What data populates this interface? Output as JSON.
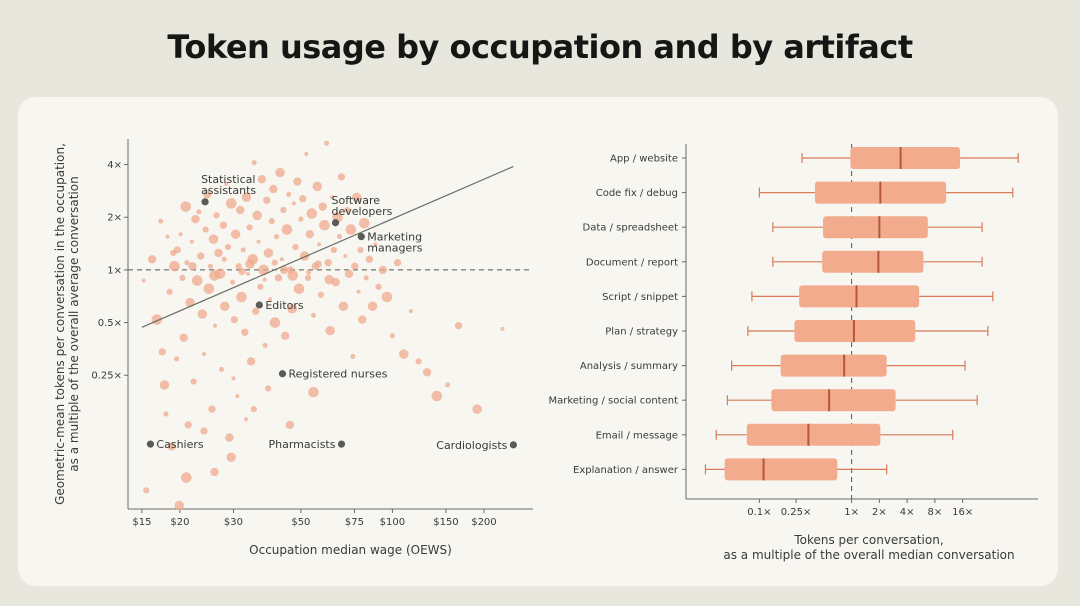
{
  "page": {
    "title": "Token usage by occupation and by artifact"
  },
  "chart_data": [
    {
      "type": "scatter",
      "title": "",
      "xlabel": "Occupation median wage (OEWS)",
      "ylabel": "Geometric-mean tokens per conversation in the occupation, as a multiple of the overall average conversation",
      "ylabel_lines": [
        "Geometric-mean tokens per conversation in the occupation,",
        "as a multiple of the overall average conversation"
      ],
      "x_scale": "log",
      "y_scale": "log",
      "x_ticks": [
        {
          "value": 15,
          "label": "$15"
        },
        {
          "value": 20,
          "label": "$20"
        },
        {
          "value": 30,
          "label": "$30"
        },
        {
          "value": 50,
          "label": "$50"
        },
        {
          "value": 75,
          "label": "$75"
        },
        {
          "value": 100,
          "label": "$100"
        },
        {
          "value": 150,
          "label": "$150"
        },
        {
          "value": 200,
          "label": "$200"
        }
      ],
      "y_ticks": [
        {
          "value": 0.25,
          "label": "0.25×"
        },
        {
          "value": 0.5,
          "label": "0.5×"
        },
        {
          "value": 1,
          "label": "1×"
        },
        {
          "value": 2,
          "label": "2×"
        },
        {
          "value": 4,
          "label": "4×"
        }
      ],
      "xlim": [
        13.5,
        290
      ],
      "ylim": [
        0.043,
        5.6
      ],
      "reference_line_y": 1,
      "trend_line": [
        {
          "x": 15,
          "y": 0.47
        },
        {
          "x": 250,
          "y": 3.9
        }
      ],
      "highlighted": [
        {
          "label": "Statistical assistants",
          "lines": [
            "Statistical",
            "assistants"
          ],
          "x": 24.2,
          "y": 2.45,
          "side": "above"
        },
        {
          "label": "Software developers",
          "lines": [
            "Software",
            "developers"
          ],
          "x": 65,
          "y": 1.86,
          "side": "above"
        },
        {
          "label": "Marketing managers",
          "lines": [
            "Marketing",
            "managers"
          ],
          "x": 79,
          "y": 1.55,
          "side": "right"
        },
        {
          "label": "Editors",
          "lines": [
            "Editors"
          ],
          "x": 36.5,
          "y": 0.63,
          "side": "right"
        },
        {
          "label": "Registered nurses",
          "lines": [
            "Registered nurses"
          ],
          "x": 43.5,
          "y": 0.255,
          "side": "right"
        },
        {
          "label": "Cashiers",
          "lines": [
            "Cashiers"
          ],
          "x": 16,
          "y": 0.101,
          "side": "right"
        },
        {
          "label": "Pharmacists",
          "lines": [
            "Pharmacists"
          ],
          "x": 68,
          "y": 0.101,
          "side": "left"
        },
        {
          "label": "Cardiologists",
          "lines": [
            "Cardiologists"
          ],
          "x": 250,
          "y": 0.1,
          "side": "left"
        }
      ],
      "points": [
        {
          "x": 15.2,
          "y": 0.87
        },
        {
          "x": 15.5,
          "y": 0.055
        },
        {
          "x": 16.2,
          "y": 1.15
        },
        {
          "x": 16.8,
          "y": 0.52
        },
        {
          "x": 17.3,
          "y": 1.9
        },
        {
          "x": 17.5,
          "y": 0.34
        },
        {
          "x": 17.8,
          "y": 0.22
        },
        {
          "x": 18.2,
          "y": 1.55
        },
        {
          "x": 18.5,
          "y": 0.75
        },
        {
          "x": 18.8,
          "y": 0.098
        },
        {
          "x": 19.2,
          "y": 1.05
        },
        {
          "x": 19.5,
          "y": 0.31
        },
        {
          "x": 19.6,
          "y": 1.3
        },
        {
          "x": 19.9,
          "y": 0.045
        },
        {
          "x": 20.1,
          "y": 1.6
        },
        {
          "x": 20.4,
          "y": 0.9
        },
        {
          "x": 20.6,
          "y": 0.41
        },
        {
          "x": 20.9,
          "y": 2.3
        },
        {
          "x": 21.1,
          "y": 1.1
        },
        {
          "x": 21.3,
          "y": 0.13
        },
        {
          "x": 21.6,
          "y": 0.65
        },
        {
          "x": 21.9,
          "y": 1.45
        },
        {
          "x": 22.2,
          "y": 0.23
        },
        {
          "x": 22.5,
          "y": 1.95
        },
        {
          "x": 22.8,
          "y": 0.87
        },
        {
          "x": 23.1,
          "y": 2.15
        },
        {
          "x": 23.4,
          "y": 1.2
        },
        {
          "x": 23.7,
          "y": 0.56
        },
        {
          "x": 24.0,
          "y": 0.33
        },
        {
          "x": 24.3,
          "y": 1.7
        },
        {
          "x": 24.6,
          "y": 2.7
        },
        {
          "x": 24.9,
          "y": 0.78
        },
        {
          "x": 25.2,
          "y": 1.05
        },
        {
          "x": 25.5,
          "y": 0.16
        },
        {
          "x": 25.8,
          "y": 1.5
        },
        {
          "x": 26.1,
          "y": 0.48
        },
        {
          "x": 26.4,
          "y": 2.05
        },
        {
          "x": 26.8,
          "y": 1.25
        },
        {
          "x": 27.1,
          "y": 0.95
        },
        {
          "x": 27.4,
          "y": 0.27
        },
        {
          "x": 27.8,
          "y": 1.8
        },
        {
          "x": 28.1,
          "y": 0.62
        },
        {
          "x": 28.4,
          "y": 3.1
        },
        {
          "x": 28.8,
          "y": 1.35
        },
        {
          "x": 29.1,
          "y": 0.11
        },
        {
          "x": 29.5,
          "y": 2.4
        },
        {
          "x": 29.8,
          "y": 0.85
        },
        {
          "x": 30.2,
          "y": 0.52
        },
        {
          "x": 30.5,
          "y": 1.6
        },
        {
          "x": 30.9,
          "y": 0.19
        },
        {
          "x": 31.2,
          "y": 1.05
        },
        {
          "x": 31.6,
          "y": 2.2
        },
        {
          "x": 31.9,
          "y": 0.7
        },
        {
          "x": 32.3,
          "y": 1.3
        },
        {
          "x": 32.7,
          "y": 0.44
        },
        {
          "x": 33.1,
          "y": 2.6
        },
        {
          "x": 33.5,
          "y": 0.95
        },
        {
          "x": 33.9,
          "y": 1.75
        },
        {
          "x": 34.3,
          "y": 0.3
        },
        {
          "x": 34.7,
          "y": 1.15
        },
        {
          "x": 35.1,
          "y": 4.1
        },
        {
          "x": 35.5,
          "y": 0.58
        },
        {
          "x": 35.9,
          "y": 2.05
        },
        {
          "x": 36.3,
          "y": 1.45
        },
        {
          "x": 36.8,
          "y": 0.8
        },
        {
          "x": 37.2,
          "y": 3.3
        },
        {
          "x": 37.7,
          "y": 1.0
        },
        {
          "x": 38.1,
          "y": 0.37
        },
        {
          "x": 38.6,
          "y": 2.5
        },
        {
          "x": 39.1,
          "y": 1.25
        },
        {
          "x": 39.6,
          "y": 0.68
        },
        {
          "x": 40.1,
          "y": 1.9
        },
        {
          "x": 40.6,
          "y": 2.9
        },
        {
          "x": 41.1,
          "y": 0.5
        },
        {
          "x": 41.6,
          "y": 1.55
        },
        {
          "x": 42.2,
          "y": 0.9
        },
        {
          "x": 42.7,
          "y": 3.6
        },
        {
          "x": 43.3,
          "y": 1.15
        },
        {
          "x": 43.8,
          "y": 2.2
        },
        {
          "x": 44.4,
          "y": 0.42
        },
        {
          "x": 45.0,
          "y": 1.7
        },
        {
          "x": 45.6,
          "y": 2.7
        },
        {
          "x": 46.2,
          "y": 1.0
        },
        {
          "x": 46.8,
          "y": 0.6
        },
        {
          "x": 47.4,
          "y": 2.4
        },
        {
          "x": 48.0,
          "y": 1.35
        },
        {
          "x": 48.7,
          "y": 3.2
        },
        {
          "x": 49.3,
          "y": 0.78
        },
        {
          "x": 50.0,
          "y": 1.95
        },
        {
          "x": 50.7,
          "y": 2.55
        },
        {
          "x": 51.4,
          "y": 1.2
        },
        {
          "x": 52.1,
          "y": 4.6
        },
        {
          "x": 52.8,
          "y": 0.9
        },
        {
          "x": 53.5,
          "y": 1.6
        },
        {
          "x": 54.3,
          "y": 2.1
        },
        {
          "x": 55.0,
          "y": 0.55
        },
        {
          "x": 55.8,
          "y": 1.05
        },
        {
          "x": 56.6,
          "y": 3.0
        },
        {
          "x": 57.4,
          "y": 1.4
        },
        {
          "x": 58.2,
          "y": 0.72
        },
        {
          "x": 59.0,
          "y": 2.3
        },
        {
          "x": 59.8,
          "y": 1.8
        },
        {
          "x": 60.7,
          "y": 5.3
        },
        {
          "x": 61.5,
          "y": 1.1
        },
        {
          "x": 62.4,
          "y": 0.45
        },
        {
          "x": 63.3,
          "y": 2.6
        },
        {
          "x": 64.2,
          "y": 1.3
        },
        {
          "x": 65.1,
          "y": 0.85
        },
        {
          "x": 66.0,
          "y": 2.0
        },
        {
          "x": 67.0,
          "y": 1.55
        },
        {
          "x": 68.0,
          "y": 3.4
        },
        {
          "x": 69.0,
          "y": 0.62
        },
        {
          "x": 70.0,
          "y": 1.2
        },
        {
          "x": 71.0,
          "y": 2.2
        },
        {
          "x": 72.0,
          "y": 0.95
        },
        {
          "x": 73.0,
          "y": 1.7
        },
        {
          "x": 74.1,
          "y": 0.32
        },
        {
          "x": 75.2,
          "y": 1.05
        },
        {
          "x": 76.3,
          "y": 2.6
        },
        {
          "x": 77.4,
          "y": 0.75
        },
        {
          "x": 78.5,
          "y": 1.3
        },
        {
          "x": 79.6,
          "y": 0.52
        },
        {
          "x": 80.8,
          "y": 1.85
        },
        {
          "x": 82.0,
          "y": 0.9
        },
        {
          "x": 84.0,
          "y": 1.15
        },
        {
          "x": 86.0,
          "y": 0.62
        },
        {
          "x": 88.0,
          "y": 1.4
        },
        {
          "x": 90.0,
          "y": 0.8
        },
        {
          "x": 93.0,
          "y": 1.0
        },
        {
          "x": 96.0,
          "y": 0.7
        },
        {
          "x": 100.0,
          "y": 0.42
        },
        {
          "x": 104.0,
          "y": 1.1
        },
        {
          "x": 109.0,
          "y": 0.33
        },
        {
          "x": 115.0,
          "y": 0.58
        },
        {
          "x": 122.0,
          "y": 0.3
        },
        {
          "x": 130.0,
          "y": 0.26
        },
        {
          "x": 140.0,
          "y": 0.19
        },
        {
          "x": 152.0,
          "y": 0.22
        },
        {
          "x": 165.0,
          "y": 0.48
        },
        {
          "x": 190.0,
          "y": 0.16
        },
        {
          "x": 230.0,
          "y": 0.46
        },
        {
          "x": 19.0,
          "y": 1.25
        },
        {
          "x": 22.0,
          "y": 1.05
        },
        {
          "x": 26.0,
          "y": 0.93
        },
        {
          "x": 28.0,
          "y": 1.15
        },
        {
          "x": 32.0,
          "y": 0.98
        },
        {
          "x": 34.0,
          "y": 1.08
        },
        {
          "x": 38.0,
          "y": 0.88
        },
        {
          "x": 41.0,
          "y": 1.1
        },
        {
          "x": 44.0,
          "y": 1.0
        },
        {
          "x": 47.0,
          "y": 0.93
        },
        {
          "x": 53.0,
          "y": 0.97
        },
        {
          "x": 57.0,
          "y": 1.08
        },
        {
          "x": 62.0,
          "y": 0.88
        },
        {
          "x": 30.0,
          "y": 0.24
        },
        {
          "x": 35.0,
          "y": 0.16
        },
        {
          "x": 26.0,
          "y": 0.07
        },
        {
          "x": 21.0,
          "y": 0.065
        },
        {
          "x": 18.0,
          "y": 0.15
        },
        {
          "x": 24.0,
          "y": 0.12
        },
        {
          "x": 29.5,
          "y": 0.085
        },
        {
          "x": 33.0,
          "y": 0.14
        },
        {
          "x": 39.0,
          "y": 0.21
        },
        {
          "x": 46.0,
          "y": 0.13
        },
        {
          "x": 55.0,
          "y": 0.2
        }
      ]
    },
    {
      "type": "box",
      "title": "",
      "xlabel_lines": [
        "Tokens per conversation,",
        "as a multiple of the overall median conversation"
      ],
      "xlabel": "Tokens per conversation, as a multiple of the overall median conversation",
      "x_scale": "log2",
      "x_ticks": [
        {
          "value": 0.1,
          "label": "0.1×"
        },
        {
          "value": 0.25,
          "label": "0.25×"
        },
        {
          "value": 1,
          "label": "1×"
        },
        {
          "value": 2,
          "label": "2×"
        },
        {
          "value": 4,
          "label": "4×"
        },
        {
          "value": 8,
          "label": "8×"
        },
        {
          "value": 16,
          "label": "16×"
        }
      ],
      "xlim": [
        0.016,
        105
      ],
      "reference_line_x": 1,
      "categories": [
        "App / website",
        "Code fix / debug",
        "Data / spreadsheet",
        "Document / report",
        "Script / snippet",
        "Plan / strategy",
        "Analysis / summary",
        "Marketing / social content",
        "Email / message",
        "Explanation / answer"
      ],
      "boxes": [
        {
          "whisker_low": 0.29,
          "q1": 0.97,
          "median": 3.4,
          "q3": 15.0,
          "whisker_high": 64.0
        },
        {
          "whisker_low": 0.1,
          "q1": 0.4,
          "median": 2.05,
          "q3": 10.6,
          "whisker_high": 56.0
        },
        {
          "whisker_low": 0.14,
          "q1": 0.49,
          "median": 2.0,
          "q3": 6.7,
          "whisker_high": 26.0
        },
        {
          "whisker_low": 0.14,
          "q1": 0.48,
          "median": 1.95,
          "q3": 6.0,
          "whisker_high": 26.0
        },
        {
          "whisker_low": 0.083,
          "q1": 0.27,
          "median": 1.13,
          "q3": 5.4,
          "whisker_high": 34.0
        },
        {
          "whisker_low": 0.075,
          "q1": 0.24,
          "median": 1.06,
          "q3": 4.9,
          "whisker_high": 30.0
        },
        {
          "whisker_low": 0.05,
          "q1": 0.17,
          "median": 0.83,
          "q3": 2.4,
          "whisker_high": 17.0
        },
        {
          "whisker_low": 0.045,
          "q1": 0.135,
          "median": 0.57,
          "q3": 3.0,
          "whisker_high": 23.0
        },
        {
          "whisker_low": 0.034,
          "q1": 0.073,
          "median": 0.34,
          "q3": 2.05,
          "whisker_high": 12.5
        },
        {
          "whisker_low": 0.026,
          "q1": 0.042,
          "median": 0.111,
          "q3": 0.7,
          "whisker_high": 2.4
        }
      ],
      "colors": {
        "box": "#f2ab8c",
        "whisker": "#d97a58",
        "median": "#b3583c"
      }
    }
  ],
  "colors": {
    "point": "#efaa8c",
    "highlight": "#5a5a56",
    "trend": "#6c6c68",
    "axis": "#6a6a66"
  }
}
